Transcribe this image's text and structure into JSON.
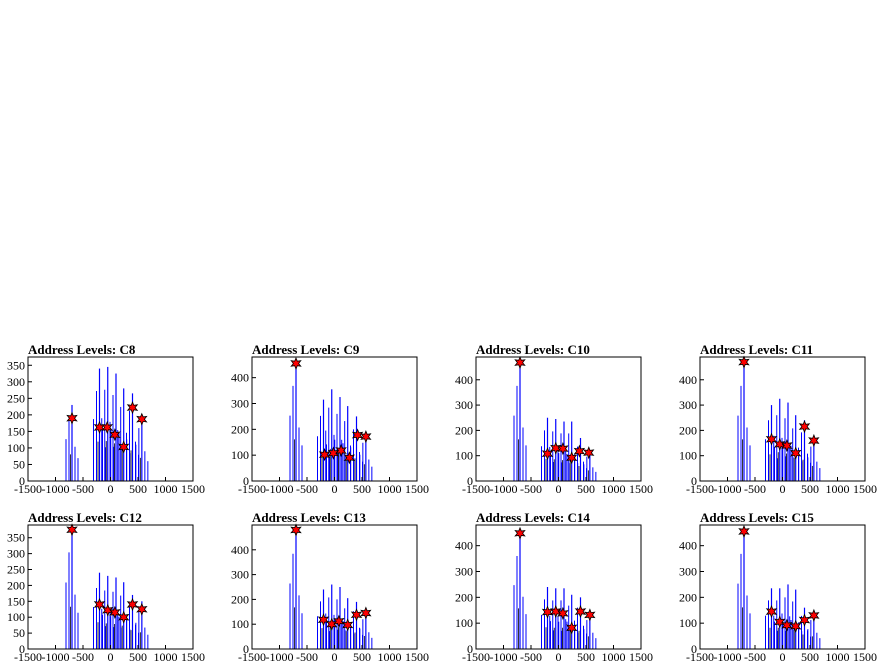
{
  "chart_data": [
    {
      "type": "histogram",
      "title": "Address Levels: C8",
      "xlim": [
        -1500,
        1500
      ],
      "xticks": [
        "-1500",
        "-1000",
        "-500",
        "0",
        "500",
        "1000",
        "1500"
      ],
      "ylim": [
        0,
        375
      ],
      "yticks": [
        "0",
        "50",
        "100",
        "150",
        "200",
        "250",
        "300",
        "350"
      ],
      "bars": [
        [
          -700,
          230
        ],
        [
          -200,
          340
        ],
        [
          -50,
          345
        ],
        [
          100,
          325
        ],
        [
          240,
          280
        ],
        [
          400,
          265
        ],
        [
          570,
          200
        ]
      ],
      "peaks": [
        [
          -700,
          190
        ],
        [
          -200,
          162
        ],
        [
          -60,
          162
        ],
        [
          80,
          140
        ],
        [
          240,
          103
        ],
        [
          400,
          222
        ],
        [
          570,
          187
        ]
      ]
    },
    {
      "type": "histogram",
      "title": "Address Levels: C9",
      "xlim": [
        -1500,
        1500
      ],
      "xticks": [
        "-1500",
        "-1000",
        "-500",
        "0",
        "500",
        "1000",
        "1500"
      ],
      "ylim": [
        0,
        480
      ],
      "yticks": [
        "0",
        "100",
        "200",
        "300",
        "400"
      ],
      "bars": [
        [
          -700,
          460
        ],
        [
          -200,
          315
        ],
        [
          -50,
          355
        ],
        [
          100,
          325
        ],
        [
          240,
          290
        ],
        [
          400,
          250
        ],
        [
          570,
          185
        ]
      ],
      "peaks": [
        [
          -700,
          455
        ],
        [
          -180,
          102
        ],
        [
          -20,
          108
        ],
        [
          120,
          118
        ],
        [
          270,
          90
        ],
        [
          420,
          178
        ],
        [
          570,
          172
        ]
      ]
    },
    {
      "type": "histogram",
      "title": "Address Levels: C10",
      "xlim": [
        -1500,
        1500
      ],
      "xticks": [
        "-1500",
        "-1000",
        "-500",
        "0",
        "500",
        "1000",
        "1500"
      ],
      "ylim": [
        0,
        490
      ],
      "yticks": [
        "0",
        "100",
        "200",
        "300",
        "400"
      ],
      "bars": [
        [
          -700,
          470
        ],
        [
          -200,
          250
        ],
        [
          -50,
          245
        ],
        [
          100,
          235
        ],
        [
          240,
          235
        ],
        [
          400,
          170
        ],
        [
          570,
          120
        ]
      ],
      "peaks": [
        [
          -700,
          468
        ],
        [
          -200,
          108
        ],
        [
          -50,
          130
        ],
        [
          80,
          128
        ],
        [
          240,
          92
        ],
        [
          380,
          118
        ],
        [
          550,
          112
        ]
      ]
    },
    {
      "type": "histogram",
      "title": "Address Levels: C11",
      "xlim": [
        -1500,
        1500
      ],
      "xticks": [
        "-1500",
        "-1000",
        "-500",
        "0",
        "500",
        "1000",
        "1500"
      ],
      "ylim": [
        0,
        490
      ],
      "yticks": [
        "0",
        "100",
        "200",
        "300",
        "400"
      ],
      "bars": [
        [
          -700,
          470
        ],
        [
          -200,
          300
        ],
        [
          -50,
          325
        ],
        [
          100,
          310
        ],
        [
          240,
          260
        ],
        [
          400,
          240
        ],
        [
          570,
          170
        ]
      ],
      "peaks": [
        [
          -700,
          470
        ],
        [
          -200,
          165
        ],
        [
          -50,
          145
        ],
        [
          80,
          140
        ],
        [
          240,
          110
        ],
        [
          400,
          215
        ],
        [
          570,
          160
        ]
      ]
    },
    {
      "type": "histogram",
      "title": "Address Levels: C12",
      "xlim": [
        -1500,
        1500
      ],
      "xticks": [
        "-1500",
        "-1000",
        "-500",
        "0",
        "500",
        "1000",
        "1500"
      ],
      "ylim": [
        0,
        390
      ],
      "yticks": [
        "0",
        "50",
        "100",
        "150",
        "200",
        "250",
        "300",
        "350"
      ],
      "bars": [
        [
          -700,
          380
        ],
        [
          -200,
          240
        ],
        [
          -50,
          230
        ],
        [
          100,
          225
        ],
        [
          240,
          210
        ],
        [
          400,
          170
        ],
        [
          570,
          150
        ]
      ],
      "peaks": [
        [
          -700,
          375
        ],
        [
          -200,
          140
        ],
        [
          -50,
          122
        ],
        [
          80,
          115
        ],
        [
          240,
          100
        ],
        [
          400,
          140
        ],
        [
          570,
          125
        ]
      ]
    },
    {
      "type": "histogram",
      "title": "Address Levels: C13",
      "xlim": [
        -1500,
        1500
      ],
      "xticks": [
        "-1500",
        "-1000",
        "-500",
        "0",
        "500",
        "1000",
        "1500"
      ],
      "ylim": [
        0,
        500
      ],
      "yticks": [
        "0",
        "100",
        "200",
        "300",
        "400"
      ],
      "bars": [
        [
          -700,
          480
        ],
        [
          -200,
          240
        ],
        [
          -50,
          260
        ],
        [
          100,
          250
        ],
        [
          240,
          205
        ],
        [
          400,
          190
        ],
        [
          570,
          150
        ]
      ],
      "peaks": [
        [
          -700,
          480
        ],
        [
          -200,
          118
        ],
        [
          -50,
          100
        ],
        [
          80,
          112
        ],
        [
          240,
          97
        ],
        [
          400,
          138
        ],
        [
          570,
          145
        ]
      ]
    },
    {
      "type": "histogram",
      "title": "Address Levels: C14",
      "xlim": [
        -1500,
        1500
      ],
      "xticks": [
        "-1500",
        "-1000",
        "-500",
        "0",
        "500",
        "1000",
        "1500"
      ],
      "ylim": [
        0,
        480
      ],
      "yticks": [
        "0",
        "100",
        "200",
        "300",
        "400"
      ],
      "bars": [
        [
          -700,
          450
        ],
        [
          -200,
          240
        ],
        [
          -50,
          235
        ],
        [
          100,
          235
        ],
        [
          240,
          210
        ],
        [
          400,
          200
        ],
        [
          570,
          140
        ]
      ],
      "peaks": [
        [
          -700,
          448
        ],
        [
          -200,
          143
        ],
        [
          -50,
          145
        ],
        [
          80,
          138
        ],
        [
          240,
          82
        ],
        [
          400,
          145
        ],
        [
          570,
          132
        ]
      ]
    },
    {
      "type": "histogram",
      "title": "Address Levels: C15",
      "xlim": [
        -1500,
        1500
      ],
      "xticks": [
        "-1500",
        "-1000",
        "-500",
        "0",
        "500",
        "1000",
        "1500"
      ],
      "ylim": [
        0,
        480
      ],
      "yticks": [
        "0",
        "100",
        "200",
        "300",
        "400"
      ],
      "bars": [
        [
          -700,
          460
        ],
        [
          -200,
          235
        ],
        [
          -50,
          235
        ],
        [
          100,
          250
        ],
        [
          240,
          230
        ],
        [
          400,
          160
        ],
        [
          570,
          140
        ]
      ],
      "peaks": [
        [
          -700,
          455
        ],
        [
          -200,
          145
        ],
        [
          -50,
          105
        ],
        [
          80,
          92
        ],
        [
          240,
          88
        ],
        [
          400,
          112
        ],
        [
          570,
          130
        ]
      ]
    }
  ],
  "colors": {
    "bar": "#0000ff",
    "marker_fill": "#ff0000",
    "marker_edge": "#000000",
    "axis": "#000000"
  }
}
